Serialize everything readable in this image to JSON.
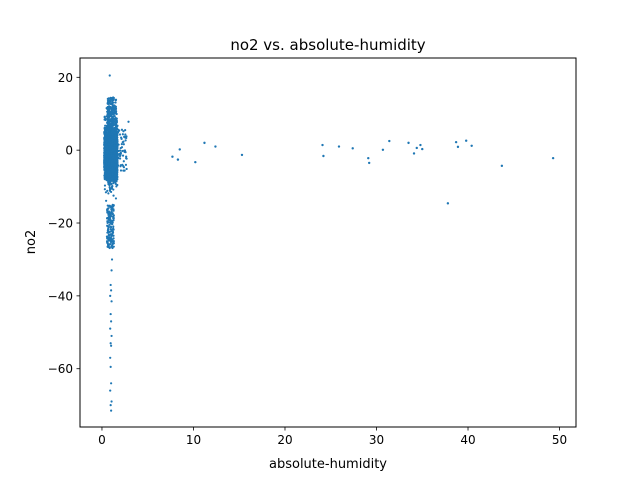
{
  "chart_data": {
    "type": "scatter",
    "title": "no2 vs. absolute-humidity",
    "xlabel": "absolute-humidity",
    "ylabel": "no2",
    "xlim": [
      -2.4,
      51.8
    ],
    "ylim": [
      -76,
      25.3
    ],
    "xticks": [
      0,
      10,
      20,
      30,
      40,
      50
    ],
    "yticks": [
      20,
      0,
      -20,
      -40,
      -60
    ],
    "xtick_labels": [
      "0",
      "10",
      "20",
      "30",
      "40",
      "50"
    ],
    "ytick_labels": [
      "20",
      "0",
      "−20",
      "−40",
      "−60"
    ],
    "grid": false,
    "legend": "none",
    "color": "#1f77b4",
    "series": [
      {
        "x": [
          7.7,
          8.3,
          8.5,
          10.2,
          11.2,
          12.4,
          15.3,
          24.1,
          24.2,
          25.9,
          27.4,
          29.1,
          29.2,
          30.7,
          31.4,
          33.5,
          34.1,
          34.4,
          34.8,
          35.0,
          37.8,
          38.7,
          38.9,
          39.8,
          40.4,
          43.7,
          49.3
        ],
        "y": [
          -1.8,
          -2.6,
          0.2,
          -3.3,
          2.0,
          1.0,
          -1.3,
          1.4,
          -1.6,
          1.0,
          0.5,
          -2.2,
          -3.5,
          0.1,
          2.5,
          2.0,
          -0.9,
          0.6,
          1.4,
          0.3,
          -14.6,
          2.2,
          0.9,
          2.6,
          1.2,
          -4.3,
          -2.2
        ]
      }
    ]
  }
}
